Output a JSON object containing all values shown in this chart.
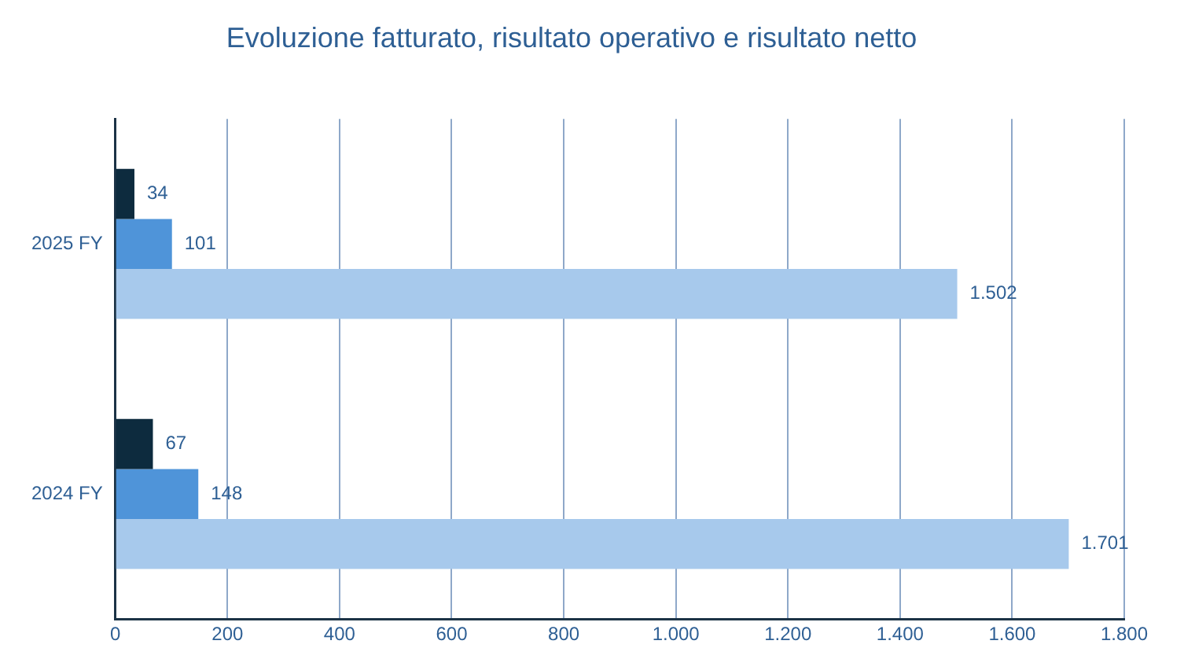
{
  "chart_data": {
    "type": "bar",
    "orientation": "horizontal",
    "title": "Evoluzione fatturato, risultato operativo e risultato netto",
    "categories": [
      "2025 FY",
      "2024 FY"
    ],
    "series": [
      {
        "color": "#0d2b3e",
        "values": [
          34,
          67
        ],
        "value_labels": [
          "34",
          "67"
        ]
      },
      {
        "color": "#4f94d9",
        "values": [
          101,
          148
        ],
        "value_labels": [
          "101",
          "148"
        ]
      },
      {
        "color": "#a7c9ec",
        "values": [
          1502,
          1701
        ],
        "value_labels": [
          "1.502",
          "1.701"
        ]
      }
    ],
    "xlim": [
      0,
      1800
    ],
    "xticks": [
      0,
      200,
      400,
      600,
      800,
      {
        "value": 1000,
        "label": "1.000"
      },
      {
        "value": 1200,
        "label": "1.200"
      },
      {
        "value": 1400,
        "label": "1.400"
      },
      {
        "value": 1600,
        "label": "1.600"
      },
      {
        "value": 1800,
        "label": "1.800"
      }
    ],
    "grid": "x",
    "legend": false
  }
}
